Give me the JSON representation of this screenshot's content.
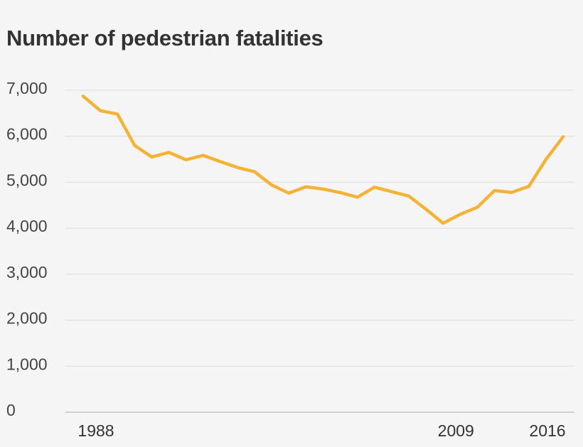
{
  "chart_data": {
    "type": "line",
    "title": "Number of pedestrian fatalities",
    "xlabel": "",
    "ylabel": "",
    "x": [
      1988,
      1989,
      1990,
      1991,
      1992,
      1993,
      1994,
      1995,
      1996,
      1997,
      1998,
      1999,
      2000,
      2001,
      2002,
      2003,
      2004,
      2005,
      2006,
      2007,
      2008,
      2009,
      2010,
      2011,
      2012,
      2013,
      2014,
      2015,
      2016
    ],
    "series": [
      {
        "values": [
          6870,
          6556,
          6482,
          5801,
          5549,
          5649,
          5489,
          5584,
          5449,
          5321,
          5228,
          4939,
          4763,
          4901,
          4851,
          4774,
          4675,
          4892,
          4795,
          4699,
          4414,
          4109,
          4302,
          4457,
          4818,
          4779,
          4910,
          5495,
          5987
        ],
        "color": "#f5b335"
      }
    ],
    "ylim": [
      0,
      7000
    ],
    "xlim": [
      1988,
      2016
    ],
    "yticks": [
      0,
      1000,
      2000,
      3000,
      4000,
      5000,
      6000,
      7000
    ],
    "ytick_labels": [
      "0",
      "1,000",
      "2,000",
      "3,000",
      "4,000",
      "5,000",
      "6,000",
      "7,000"
    ],
    "xticks": [
      1988,
      2009,
      2016
    ],
    "xtick_labels": [
      "1988",
      "2009",
      "2016"
    ],
    "grid": true,
    "gridline_color": "#dddddd",
    "background": "#f5f5f5"
  }
}
